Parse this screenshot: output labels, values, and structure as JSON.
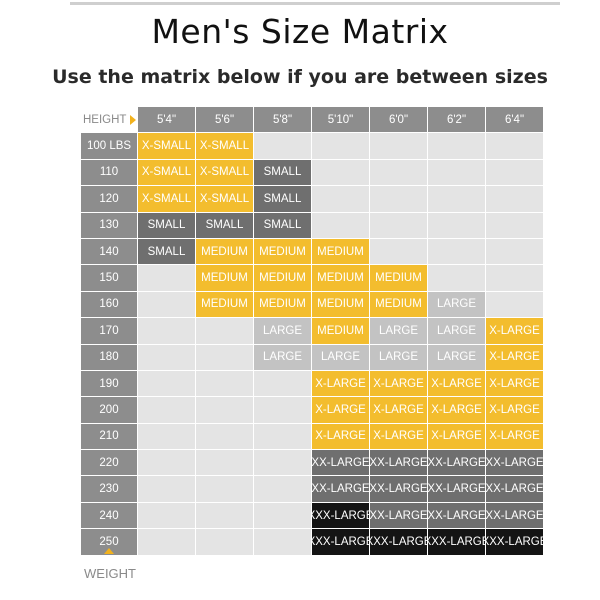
{
  "header": {
    "title": "Men's Size Matrix",
    "subtitle": "Use the matrix below if you are between sizes"
  },
  "axis": {
    "height_label": "HEIGHT",
    "weight_label": "WEIGHT"
  },
  "heights": [
    "5'4\"",
    "5'6\"",
    "5'8\"",
    "5'10\"",
    "6'0\"",
    "6'2\"",
    "6'4\""
  ],
  "legend_colors": {
    "yellow": "#f3bd2e",
    "light_gray": "#c3c3c3",
    "dark_gray": "#6f6f6f",
    "black": "#141414",
    "header_gray": "#8d8d8d",
    "empty": "#e4e4e4"
  },
  "rows": [
    {
      "weight": "100 LBS",
      "cells": [
        {
          "t": "X-SMALL",
          "c": "y"
        },
        {
          "t": "X-SMALL",
          "c": "y"
        },
        {
          "t": "",
          "c": "e"
        },
        {
          "t": "",
          "c": "e"
        },
        {
          "t": "",
          "c": "e"
        },
        {
          "t": "",
          "c": "e"
        },
        {
          "t": "",
          "c": "e"
        }
      ]
    },
    {
      "weight": "110",
      "cells": [
        {
          "t": "X-SMALL",
          "c": "y"
        },
        {
          "t": "X-SMALL",
          "c": "y"
        },
        {
          "t": "SMALL",
          "c": "d"
        },
        {
          "t": "",
          "c": "e"
        },
        {
          "t": "",
          "c": "e"
        },
        {
          "t": "",
          "c": "e"
        },
        {
          "t": "",
          "c": "e"
        }
      ]
    },
    {
      "weight": "120",
      "cells": [
        {
          "t": "X-SMALL",
          "c": "y"
        },
        {
          "t": "X-SMALL",
          "c": "y"
        },
        {
          "t": "SMALL",
          "c": "d"
        },
        {
          "t": "",
          "c": "e"
        },
        {
          "t": "",
          "c": "e"
        },
        {
          "t": "",
          "c": "e"
        },
        {
          "t": "",
          "c": "e"
        }
      ]
    },
    {
      "weight": "130",
      "cells": [
        {
          "t": "SMALL",
          "c": "d"
        },
        {
          "t": "SMALL",
          "c": "d"
        },
        {
          "t": "SMALL",
          "c": "d"
        },
        {
          "t": "",
          "c": "e"
        },
        {
          "t": "",
          "c": "e"
        },
        {
          "t": "",
          "c": "e"
        },
        {
          "t": "",
          "c": "e"
        }
      ]
    },
    {
      "weight": "140",
      "cells": [
        {
          "t": "SMALL",
          "c": "d"
        },
        {
          "t": "MEDIUM",
          "c": "y"
        },
        {
          "t": "MEDIUM",
          "c": "y"
        },
        {
          "t": "MEDIUM",
          "c": "y"
        },
        {
          "t": "",
          "c": "e"
        },
        {
          "t": "",
          "c": "e"
        },
        {
          "t": "",
          "c": "e"
        }
      ]
    },
    {
      "weight": "150",
      "cells": [
        {
          "t": "",
          "c": "e"
        },
        {
          "t": "MEDIUM",
          "c": "y"
        },
        {
          "t": "MEDIUM",
          "c": "y"
        },
        {
          "t": "MEDIUM",
          "c": "y"
        },
        {
          "t": "MEDIUM",
          "c": "y"
        },
        {
          "t": "",
          "c": "e"
        },
        {
          "t": "",
          "c": "e"
        }
      ]
    },
    {
      "weight": "160",
      "cells": [
        {
          "t": "",
          "c": "e"
        },
        {
          "t": "MEDIUM",
          "c": "y"
        },
        {
          "t": "MEDIUM",
          "c": "y"
        },
        {
          "t": "MEDIUM",
          "c": "y"
        },
        {
          "t": "MEDIUM",
          "c": "y"
        },
        {
          "t": "LARGE",
          "c": "l"
        },
        {
          "t": "",
          "c": "e"
        }
      ]
    },
    {
      "weight": "170",
      "cells": [
        {
          "t": "",
          "c": "e"
        },
        {
          "t": "",
          "c": "e"
        },
        {
          "t": "LARGE",
          "c": "l"
        },
        {
          "t": "MEDIUM",
          "c": "y"
        },
        {
          "t": "LARGE",
          "c": "l"
        },
        {
          "t": "LARGE",
          "c": "l"
        },
        {
          "t": "X-LARGE",
          "c": "y"
        }
      ]
    },
    {
      "weight": "180",
      "cells": [
        {
          "t": "",
          "c": "e"
        },
        {
          "t": "",
          "c": "e"
        },
        {
          "t": "LARGE",
          "c": "l"
        },
        {
          "t": "LARGE",
          "c": "l"
        },
        {
          "t": "LARGE",
          "c": "l"
        },
        {
          "t": "LARGE",
          "c": "l"
        },
        {
          "t": "X-LARGE",
          "c": "y"
        }
      ]
    },
    {
      "weight": "190",
      "cells": [
        {
          "t": "",
          "c": "e"
        },
        {
          "t": "",
          "c": "e"
        },
        {
          "t": "",
          "c": "e"
        },
        {
          "t": "X-LARGE",
          "c": "y"
        },
        {
          "t": "X-LARGE",
          "c": "y"
        },
        {
          "t": "X-LARGE",
          "c": "y"
        },
        {
          "t": "X-LARGE",
          "c": "y"
        }
      ]
    },
    {
      "weight": "200",
      "cells": [
        {
          "t": "",
          "c": "e"
        },
        {
          "t": "",
          "c": "e"
        },
        {
          "t": "",
          "c": "e"
        },
        {
          "t": "X-LARGE",
          "c": "y"
        },
        {
          "t": "X-LARGE",
          "c": "y"
        },
        {
          "t": "X-LARGE",
          "c": "y"
        },
        {
          "t": "X-LARGE",
          "c": "y"
        }
      ]
    },
    {
      "weight": "210",
      "cells": [
        {
          "t": "",
          "c": "e"
        },
        {
          "t": "",
          "c": "e"
        },
        {
          "t": "",
          "c": "e"
        },
        {
          "t": "X-LARGE",
          "c": "y"
        },
        {
          "t": "X-LARGE",
          "c": "y"
        },
        {
          "t": "X-LARGE",
          "c": "y"
        },
        {
          "t": "X-LARGE",
          "c": "y"
        }
      ]
    },
    {
      "weight": "220",
      "cells": [
        {
          "t": "",
          "c": "e"
        },
        {
          "t": "",
          "c": "e"
        },
        {
          "t": "",
          "c": "e"
        },
        {
          "t": "XX-LARGE",
          "c": "d"
        },
        {
          "t": "XX-LARGE",
          "c": "d"
        },
        {
          "t": "XX-LARGE",
          "c": "d"
        },
        {
          "t": "XX-LARGE",
          "c": "d"
        }
      ]
    },
    {
      "weight": "230",
      "cells": [
        {
          "t": "",
          "c": "e"
        },
        {
          "t": "",
          "c": "e"
        },
        {
          "t": "",
          "c": "e"
        },
        {
          "t": "XX-LARGE",
          "c": "d"
        },
        {
          "t": "XX-LARGE",
          "c": "d"
        },
        {
          "t": "XX-LARGE",
          "c": "d"
        },
        {
          "t": "XX-LARGE",
          "c": "d"
        }
      ]
    },
    {
      "weight": "240",
      "cells": [
        {
          "t": "",
          "c": "e"
        },
        {
          "t": "",
          "c": "e"
        },
        {
          "t": "",
          "c": "e"
        },
        {
          "t": "XXX-LARGE",
          "c": "k"
        },
        {
          "t": "XX-LARGE",
          "c": "d"
        },
        {
          "t": "XX-LARGE",
          "c": "d"
        },
        {
          "t": "XX-LARGE",
          "c": "d"
        }
      ]
    },
    {
      "weight": "250",
      "cells": [
        {
          "t": "",
          "c": "e"
        },
        {
          "t": "",
          "c": "e"
        },
        {
          "t": "",
          "c": "e"
        },
        {
          "t": "XXX-LARGE",
          "c": "k"
        },
        {
          "t": "XXX-LARGE",
          "c": "k"
        },
        {
          "t": "XXX-LARGE",
          "c": "k"
        },
        {
          "t": "XXX-LARGE",
          "c": "k"
        }
      ]
    }
  ]
}
